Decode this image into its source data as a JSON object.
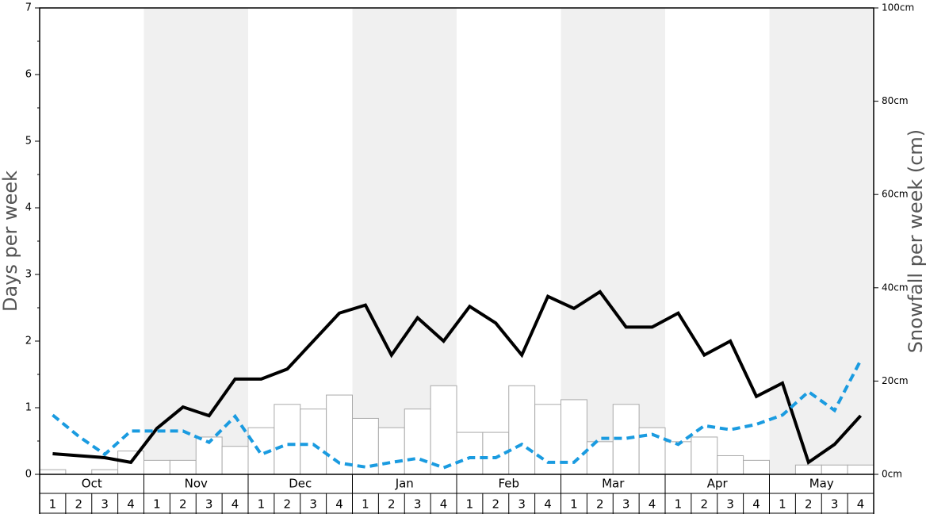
{
  "chart_data": {
    "type": "bar-line",
    "ylabel": "Days per week",
    "y2label": "Snowfall per week (cm)",
    "months": [
      "Oct",
      "Nov",
      "Dec",
      "Jan",
      "Feb",
      "Mar",
      "Apr",
      "May"
    ],
    "categories": [
      "1",
      "2",
      "3",
      "4",
      "1",
      "2",
      "3",
      "4",
      "1",
      "2",
      "3",
      "4",
      "1",
      "2",
      "3",
      "4",
      "1",
      "2",
      "3",
      "4",
      "1",
      "2",
      "3",
      "4",
      "1",
      "2",
      "3",
      "4",
      "1",
      "2",
      "3",
      "4"
    ],
    "ylim": [
      0,
      7
    ],
    "yticks": [
      0,
      1,
      2,
      3,
      4,
      5,
      6,
      7
    ],
    "yminorticks": [
      0.5,
      1.5,
      2.5,
      3.5,
      4.5,
      5.5,
      6.5
    ],
    "y2lim": [
      0,
      100
    ],
    "y2ticks": [
      {
        "value": 0,
        "label": "0cm"
      },
      {
        "value": 20,
        "label": "20cm"
      },
      {
        "value": 40,
        "label": "40cm"
      },
      {
        "value": 60,
        "label": "60cm"
      },
      {
        "value": 80,
        "label": "80cm"
      },
      {
        "value": 100,
        "label": "100cm"
      }
    ],
    "shade_color": "#f0f0f0",
    "series": [
      {
        "kind": "bar",
        "axis": "y2",
        "color": "#ffffff",
        "edge": "#aaaaaa",
        "values": [
          1,
          0,
          1,
          5,
          3,
          3,
          8,
          6,
          10,
          15,
          14,
          17,
          12,
          10,
          14,
          19,
          9,
          9,
          19,
          15,
          16,
          7,
          15,
          10,
          7,
          8,
          4,
          3,
          0,
          2,
          2,
          2
        ]
      },
      {
        "kind": "line",
        "color": "#000000",
        "values": [
          0.31,
          0.28,
          0.25,
          0.18,
          0.69,
          1.01,
          0.88,
          1.43,
          1.43,
          1.58,
          2.0,
          2.42,
          2.54,
          1.79,
          2.35,
          2.0,
          2.52,
          2.27,
          1.79,
          2.67,
          2.49,
          2.74,
          2.21,
          2.21,
          2.42,
          1.79,
          2.0,
          1.17,
          1.37,
          0.18,
          0.45,
          0.88
        ]
      },
      {
        "kind": "dashed",
        "color": "#1a9be0",
        "values": [
          0.89,
          0.57,
          0.3,
          0.65,
          0.65,
          0.65,
          0.48,
          0.87,
          0.3,
          0.45,
          0.45,
          0.17,
          0.11,
          0.18,
          0.24,
          0.1,
          0.25,
          0.25,
          0.45,
          0.18,
          0.18,
          0.54,
          0.54,
          0.6,
          0.45,
          0.73,
          0.67,
          0.75,
          0.89,
          1.24,
          0.96,
          1.71
        ]
      }
    ]
  }
}
